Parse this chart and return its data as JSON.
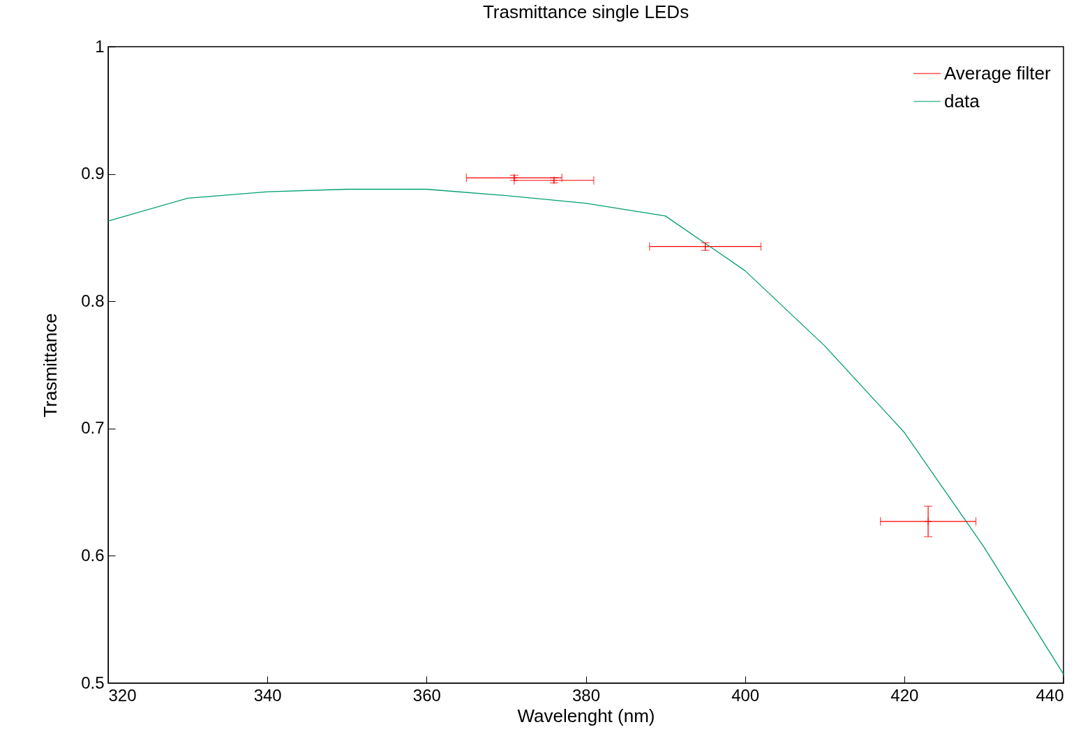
{
  "chart_data": {
    "type": "line",
    "title": "Trasmittance single LEDs",
    "xlabel": "Wavelenght (nm)",
    "ylabel": "Trasmittance",
    "xlim": [
      320,
      440
    ],
    "xticks": [
      320,
      340,
      360,
      380,
      400,
      420,
      440
    ],
    "ylim": [
      0.5,
      1
    ],
    "yticks": [
      0.5,
      0.6,
      0.7,
      0.8,
      0.9,
      1
    ],
    "legend": "top right",
    "grid": false,
    "series": [
      {
        "name": "Average filter",
        "type": "scatter",
        "marker": "cross",
        "color": "#ff0000",
        "x": [
          371,
          376,
          395,
          423
        ],
        "values": [
          0.897,
          0.895,
          0.843,
          0.627
        ],
        "errors": [
          0.002,
          0.002,
          0.003,
          0.012
        ],
        "xerrors": [
          6,
          5,
          7,
          6
        ]
      },
      {
        "name": "data",
        "type": "line",
        "color": "#009e73",
        "x": [
          320,
          330,
          340,
          350,
          360,
          370,
          380,
          390,
          400,
          410,
          420,
          430,
          440
        ],
        "values": [
          0.863,
          0.881,
          0.886,
          0.888,
          0.888,
          0.883,
          0.877,
          0.867,
          0.824,
          0.765,
          0.697,
          0.607,
          0.507
        ]
      }
    ]
  }
}
